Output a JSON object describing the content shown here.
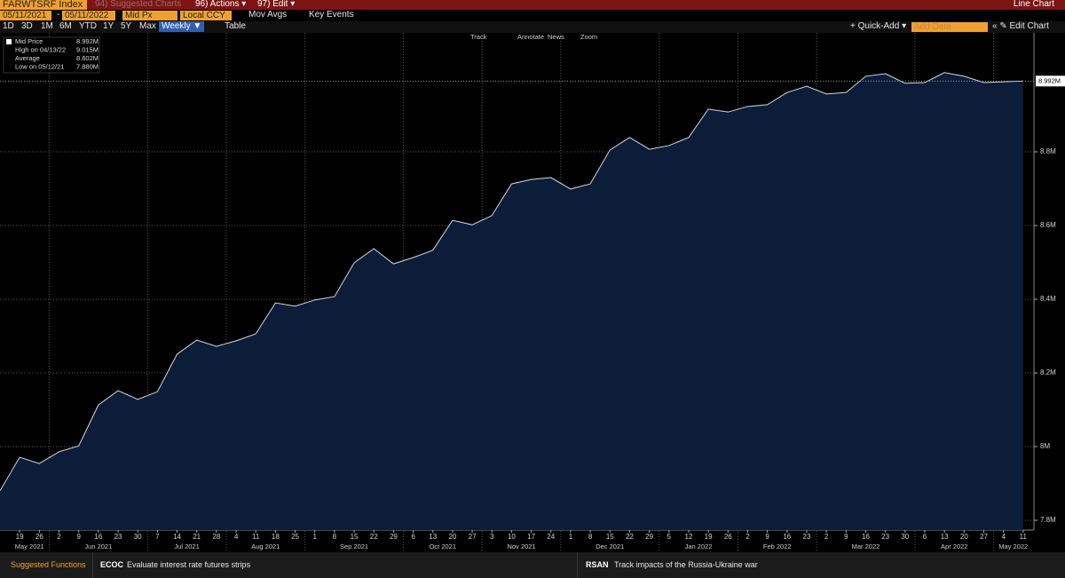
{
  "toolbar": {
    "ticker": "FARWTSRF Index",
    "suggested": "94) Suggested Charts",
    "actions": "96) Actions ▾",
    "edit": "97) Edit ▾",
    "chart_kind": "Line Chart",
    "start_date": "05/11/2021",
    "dash": "-",
    "end_date": "05/11/2022",
    "field": "Mid Px",
    "currency": "Local CCY",
    "mov_avgs": "Mov Avgs",
    "key_events": "Key Events",
    "ranges": [
      "1D",
      "3D",
      "1M",
      "6M",
      "YTD",
      "1Y",
      "5Y",
      "Max"
    ],
    "frequency": "Weekly ▼",
    "table": "Table",
    "quick_add": "+ Quick-Add ▾",
    "add_data": "Add Data",
    "edit_chart": "« ✎ Edit Chart"
  },
  "tools": [
    "Track",
    "Annotate",
    "News",
    "Zoom"
  ],
  "legend": [
    {
      "label": "Mid Price",
      "value": "8.992M"
    },
    {
      "label": "High on 04/13/22",
      "value": "9.015M"
    },
    {
      "label": "Average",
      "value": "8.602M"
    },
    {
      "label": "Low on 05/12/21",
      "value": "7.880M"
    }
  ],
  "chart_data": {
    "type": "area",
    "color": "#d6d8dc",
    "fill": "#0c1d3a",
    "categories": [
      null,
      "19",
      "26",
      "2",
      "9",
      "16",
      "23",
      "30",
      "7",
      "14",
      "21",
      "28",
      "4",
      "11",
      "18",
      "25",
      "1",
      "8",
      "15",
      "22",
      "29",
      "6",
      "13",
      "20",
      "27",
      "3",
      "10",
      "17",
      "24",
      "1",
      "8",
      "15",
      "22",
      "29",
      "5",
      "12",
      "19",
      "26",
      "2",
      "9",
      "16",
      "23",
      "2",
      "9",
      "16",
      "23",
      "30",
      "6",
      "13",
      "20",
      "27",
      "4",
      "11"
    ],
    "months": [
      "May 2021",
      "Jun 2021",
      "Jul 2021",
      "Aug 2021",
      "Sep 2021",
      "Oct 2021",
      "Nov 2021",
      "Dec 2021",
      "Jan 2022",
      "Feb 2022",
      "Mar 2022",
      "Apr 2022",
      "May 2022"
    ],
    "values": [
      7880000,
      7971000,
      7954000,
      7986000,
      8002000,
      8113000,
      8152000,
      8128000,
      8149000,
      8251000,
      8289000,
      8272000,
      8287000,
      8306000,
      8390000,
      8381000,
      8398000,
      8407000,
      8499000,
      8537000,
      8496000,
      8513000,
      8533000,
      8614000,
      8602000,
      8627000,
      8713000,
      8725000,
      8730000,
      8699000,
      8713000,
      8805000,
      8839000,
      8807000,
      8817000,
      8839000,
      8916000,
      8908000,
      8923000,
      8928000,
      8961000,
      8978000,
      8957000,
      8961000,
      9005000,
      9012000,
      8986000,
      8988000,
      9015000,
      9005000,
      8988000,
      8990000,
      8992000
    ],
    "last_value_label": "8.992M",
    "ylim": [
      7773500,
      9103600
    ],
    "yticks": [
      {
        "value": 7800000,
        "label": "7.8M"
      },
      {
        "value": 8000000,
        "label": "8M"
      },
      {
        "value": 8200000,
        "label": "8.2M"
      },
      {
        "value": 8400000,
        "label": "8.4M"
      },
      {
        "value": 8600000,
        "label": "8.6M"
      },
      {
        "value": 8800000,
        "label": "8.8M"
      }
    ],
    "grid": true
  },
  "footer": {
    "suggested_functions": "Suggested Functions",
    "f1_code": "ECOC",
    "f1_text": "Evaluate interest rate futures strips",
    "f2_code": "RSAN",
    "f2_text": "Track impacts of the Russia-Ukraine war"
  }
}
